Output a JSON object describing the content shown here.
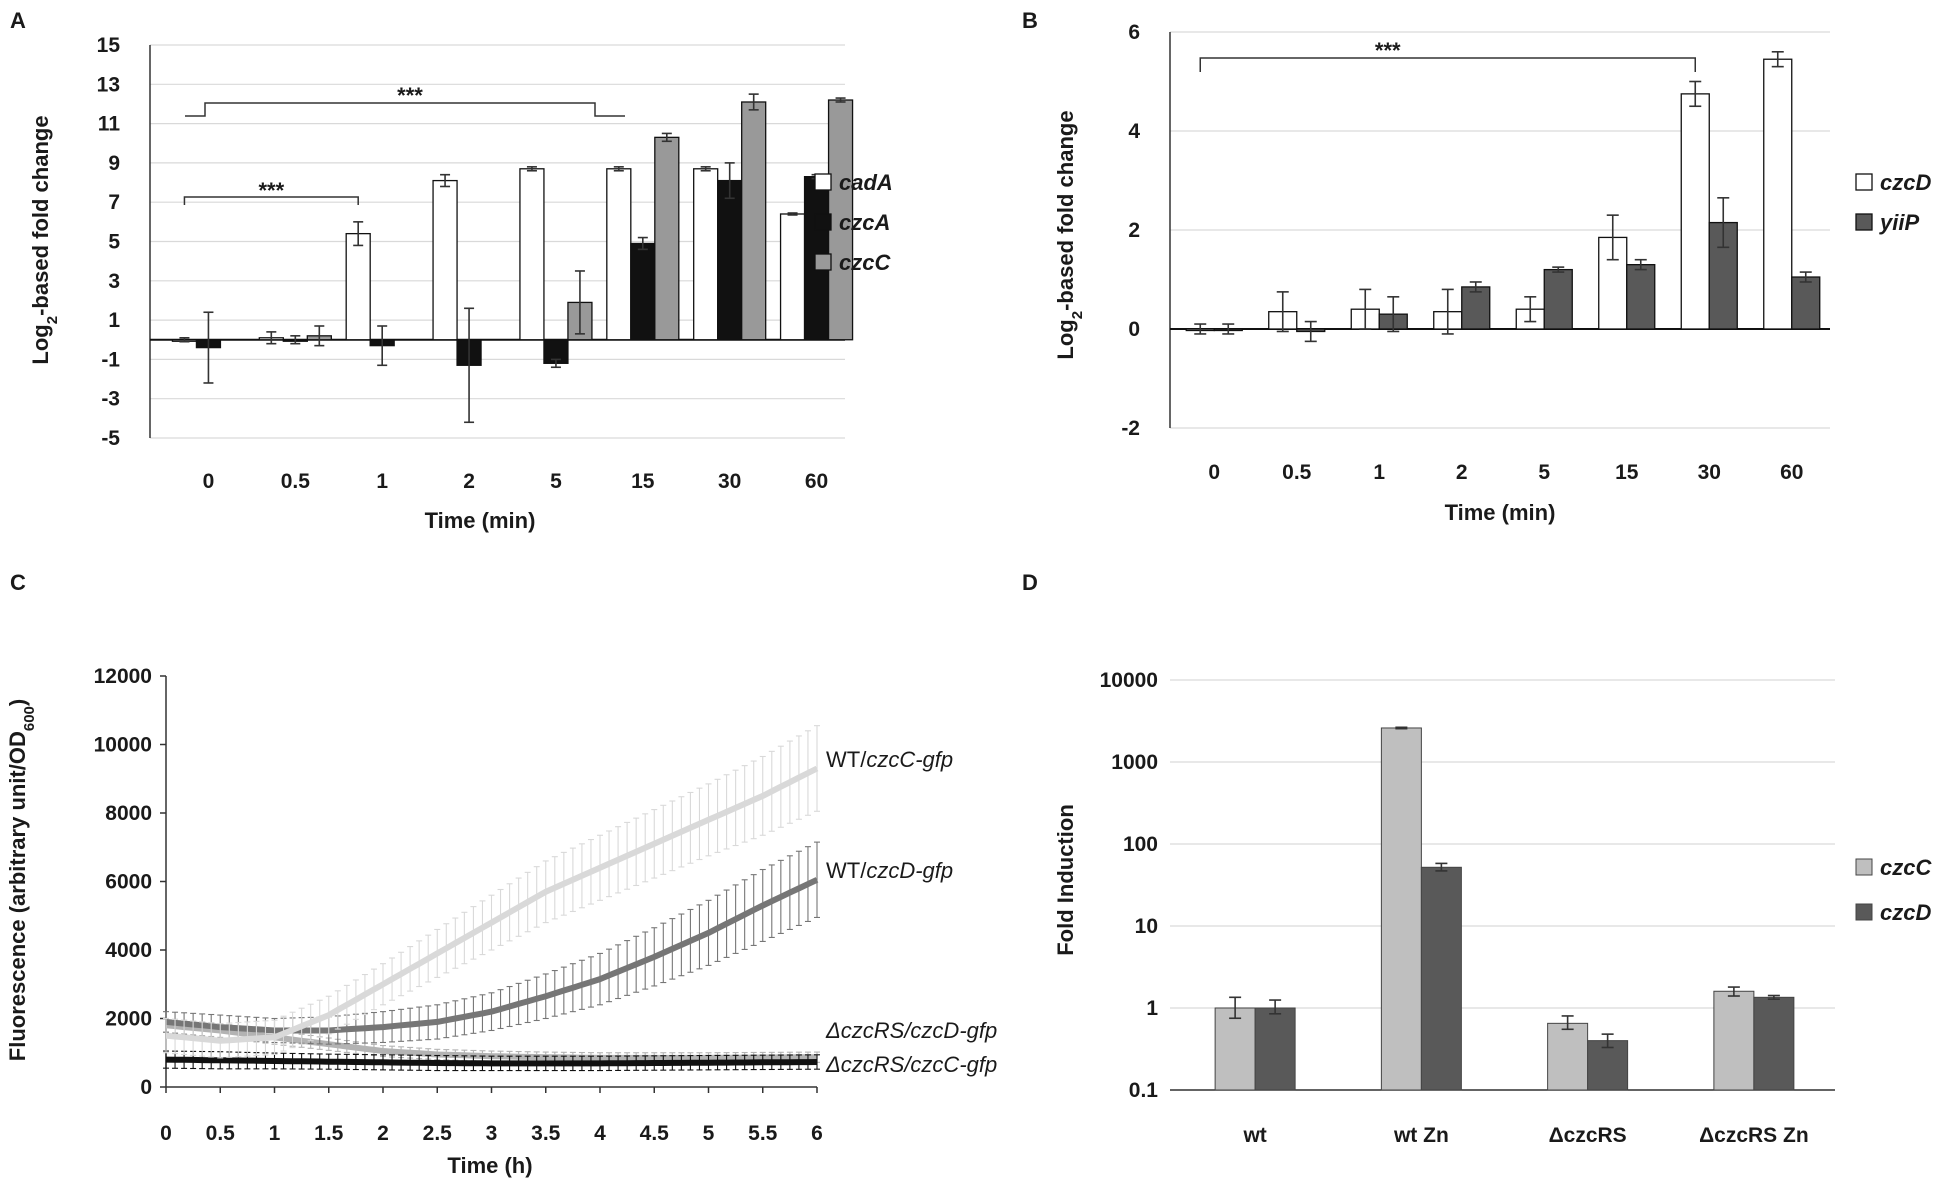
{
  "colors": {
    "white": "#ffffff",
    "black": "#111111",
    "gray": "#999999",
    "dark": "#595959",
    "light": "#bfbfbf",
    "curveLight": "#d9d9d9",
    "curveMid": "#767676",
    "curveBlack": "#111111",
    "gridline": "#d9d9d9"
  },
  "chart_data": [
    {
      "panel": "A",
      "type": "bar",
      "title": "",
      "xlabel": "Time (min)",
      "ylabel": "Log₂-based fold change",
      "ylabel_main": "Log",
      "ylabel_sub": "2",
      "ylabel_rest": "-based fold change",
      "ylim": [
        -5,
        15
      ],
      "yticks": [
        -5,
        -3,
        -1,
        1,
        3,
        5,
        7,
        9,
        11,
        13,
        15
      ],
      "ytick_labels": [
        "-5",
        "-3",
        "-1",
        "1",
        "3",
        "5",
        "7",
        "9",
        "11",
        "13",
        "15"
      ],
      "categories": [
        "0",
        "0.5",
        "1",
        "2",
        "5",
        "15",
        "30",
        "60"
      ],
      "series": [
        {
          "name": "cadA",
          "color": "#ffffff",
          "values": [
            0.0,
            0.1,
            5.4,
            8.1,
            8.7,
            8.7,
            8.7,
            6.4
          ],
          "errors": [
            0.1,
            0.3,
            0.6,
            0.3,
            0.1,
            0.1,
            0.1,
            0.05
          ]
        },
        {
          "name": "czcA",
          "color": "#111111",
          "values": [
            -0.4,
            0.0,
            -0.3,
            -1.3,
            -1.2,
            4.9,
            8.1,
            8.3
          ],
          "errors": [
            1.8,
            0.2,
            1.0,
            2.9,
            0.2,
            0.3,
            0.9,
            0.1
          ]
        },
        {
          "name": "czcC",
          "color": "#999999",
          "values": [
            null,
            0.2,
            null,
            null,
            1.9,
            10.3,
            12.1,
            12.2
          ],
          "errors": [
            0,
            0.5,
            0,
            0,
            1.6,
            0.2,
            0.4,
            0.1
          ]
        }
      ],
      "significance": [
        {
          "label": "***",
          "from": 0,
          "to": 2
        },
        {
          "label": "***",
          "from": 0,
          "to": 5
        }
      ]
    },
    {
      "panel": "B",
      "type": "bar",
      "title": "",
      "xlabel": "Time (min)",
      "ylabel": "Log₂-based fold change",
      "ylabel_main": "Log",
      "ylabel_sub": "2",
      "ylabel_rest": "-based fold change",
      "ylim": [
        -2,
        6
      ],
      "yticks": [
        -2,
        0,
        2,
        4,
        6
      ],
      "ytick_labels": [
        "-2",
        "0",
        "2",
        "4",
        "6"
      ],
      "categories": [
        "0",
        "0.5",
        "1",
        "2",
        "5",
        "15",
        "30",
        "60"
      ],
      "series": [
        {
          "name": "czcD",
          "color": "#ffffff",
          "values": [
            0.0,
            0.35,
            0.4,
            0.35,
            0.4,
            1.85,
            4.75,
            5.45
          ],
          "errors": [
            0.1,
            0.4,
            0.4,
            0.45,
            0.25,
            0.45,
            0.25,
            0.15
          ]
        },
        {
          "name": "yiiP",
          "color": "#595959",
          "values": [
            0.0,
            -0.05,
            0.3,
            0.85,
            1.2,
            1.3,
            2.15,
            1.05
          ],
          "errors": [
            0.1,
            0.2,
            0.35,
            0.1,
            0.05,
            0.1,
            0.5,
            0.1
          ]
        }
      ],
      "significance": [
        {
          "label": "***",
          "from": 0,
          "to": 6
        }
      ]
    },
    {
      "panel": "C",
      "type": "line",
      "title": "",
      "xlabel": "Time (h)",
      "ylabel": "Fluorescence (arbitrary unit/OD₆₀₀)",
      "ylabel_main": "Fluorescence (arbitrary unit/OD",
      "ylabel_sub": "600",
      "ylabel_rest": ")",
      "xlim": [
        0,
        6
      ],
      "ylim": [
        0,
        12000
      ],
      "xticks": [
        0,
        0.5,
        1,
        1.5,
        2,
        2.5,
        3,
        3.5,
        4,
        4.5,
        5,
        5.5,
        6
      ],
      "xtick_labels": [
        "0",
        "0.5",
        "1",
        "1.5",
        "2",
        "2.5",
        "3",
        "3.5",
        "4",
        "4.5",
        "5",
        "5.5",
        "6"
      ],
      "yticks": [
        0,
        2000,
        4000,
        6000,
        8000,
        10000,
        12000
      ],
      "ytick_labels": [
        "0",
        "2000",
        "4000",
        "6000",
        "8000",
        "10000",
        "12000"
      ],
      "series": [
        {
          "name": "WT/czcC-gfp",
          "prefix": "WT/",
          "italic": "czcC-gfp",
          "color": "#d9d9d9",
          "x": [
            0,
            0.5,
            1,
            1.5,
            2,
            2.5,
            3,
            3.5,
            4,
            4.5,
            5,
            5.5,
            6
          ],
          "y": [
            1500,
            1350,
            1450,
            2100,
            3000,
            3900,
            4800,
            5700,
            6400,
            7100,
            7800,
            8500,
            9300
          ],
          "err": [
            500,
            500,
            500,
            550,
            600,
            700,
            800,
            900,
            950,
            1000,
            1050,
            1150,
            1250
          ]
        },
        {
          "name": "WT/czcD-gfp",
          "prefix": "WT/",
          "italic": "czcD-gfp",
          "color": "#767676",
          "x": [
            0,
            0.5,
            1,
            1.5,
            2,
            2.5,
            3,
            3.5,
            4,
            4.5,
            5,
            5.5,
            6
          ],
          "y": [
            1900,
            1750,
            1650,
            1650,
            1750,
            1900,
            2200,
            2650,
            3150,
            3800,
            4500,
            5300,
            6050
          ],
          "err": [
            300,
            350,
            350,
            400,
            450,
            500,
            550,
            650,
            750,
            850,
            950,
            1050,
            1100
          ]
        },
        {
          "name": "ΔczcRS/czcD-gfp",
          "prefix": "",
          "italic": "ΔczcRS/czcD-gfp",
          "color": "#b3b3b3",
          "x": [
            0,
            0.5,
            1,
            1.5,
            2,
            2.5,
            3,
            3.5,
            4,
            4.5,
            5,
            5.5,
            6
          ],
          "y": [
            1800,
            1650,
            1450,
            1250,
            1050,
            950,
            900,
            870,
            850,
            850,
            850,
            860,
            870
          ],
          "err": [
            200,
            200,
            200,
            180,
            160,
            150,
            150,
            150,
            150,
            150,
            150,
            150,
            150
          ]
        },
        {
          "name": "ΔczcRS/czcC-gfp",
          "prefix": "",
          "italic": "ΔczcRS/czcC-gfp",
          "color": "#111111",
          "x": [
            0,
            0.5,
            1,
            1.5,
            2,
            2.5,
            3,
            3.5,
            4,
            4.5,
            5,
            5.5,
            6
          ],
          "y": [
            800,
            780,
            760,
            740,
            720,
            700,
            690,
            690,
            690,
            700,
            710,
            720,
            730
          ],
          "err": [
            250,
            250,
            230,
            220,
            220,
            220,
            210,
            210,
            210,
            210,
            210,
            210,
            210
          ]
        }
      ]
    },
    {
      "panel": "D",
      "type": "bar",
      "title": "",
      "xlabel": "",
      "ylabel": "Fold Induction",
      "ylabel_main": "Fold Induction",
      "ylabel_sub": "",
      "ylabel_rest": "",
      "yscale": "log",
      "ylim": [
        0.1,
        10000
      ],
      "yticks": [
        0.1,
        1,
        10,
        100,
        1000,
        10000
      ],
      "ytick_labels": [
        "0.1",
        "1",
        "10",
        "100",
        "1000",
        "10000"
      ],
      "categories": [
        "wt",
        "wt Zn",
        "ΔczcRS",
        "ΔczcRS Zn"
      ],
      "series": [
        {
          "name": "czcC",
          "color": "#bfbfbf",
          "values": [
            1.0,
            2600,
            0.65,
            1.6
          ],
          "errors_lo": [
            0.75,
            2550,
            0.55,
            1.4
          ],
          "errors_hi": [
            1.35,
            2650,
            0.8,
            1.8
          ]
        },
        {
          "name": "czcD",
          "color": "#595959",
          "values": [
            1.0,
            52,
            0.4,
            1.35
          ],
          "errors_lo": [
            0.85,
            47,
            0.33,
            1.28
          ],
          "errors_hi": [
            1.25,
            58,
            0.48,
            1.42
          ]
        }
      ]
    }
  ]
}
